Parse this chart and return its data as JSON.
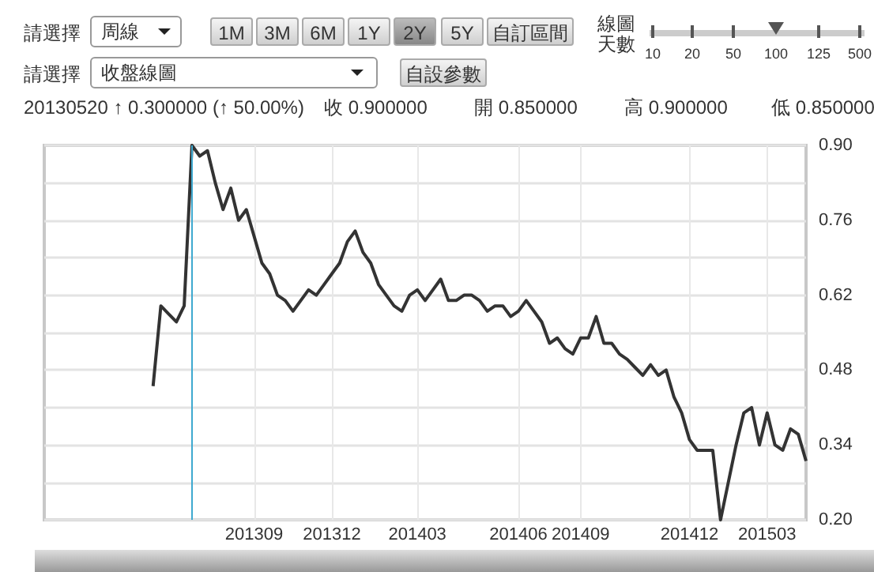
{
  "chart_data": {
    "type": "line",
    "categories": [
      null,
      null,
      null,
      null,
      null,
      null,
      null,
      null,
      null,
      null,
      null,
      null,
      null,
      null,
      null,
      null,
      null,
      null,
      null,
      null,
      null,
      null,
      null,
      null,
      null,
      null,
      null,
      "201309",
      null,
      null,
      null,
      null,
      null,
      null,
      null,
      null,
      null,
      "201312",
      null,
      null,
      null,
      null,
      null,
      null,
      null,
      null,
      null,
      null,
      "201403",
      null,
      null,
      null,
      null,
      null,
      null,
      null,
      null,
      null,
      null,
      null,
      null,
      "201406",
      null,
      null,
      null,
      null,
      null,
      null,
      null,
      "201409",
      null,
      null,
      null,
      null,
      null,
      null,
      null,
      null,
      null,
      null,
      null,
      null,
      null,
      "201412",
      null,
      null,
      null,
      null,
      null,
      null,
      null,
      null,
      null,
      "201503",
      null,
      null,
      null,
      null,
      null
    ],
    "series": [
      {
        "color": "#333333",
        "values": [
          null,
          null,
          null,
          null,
          null,
          null,
          null,
          null,
          null,
          null,
          null,
          null,
          null,
          null,
          0.45,
          0.6,
          0.585,
          0.57,
          0.6,
          0.9,
          0.88,
          0.89,
          0.83,
          0.78,
          0.82,
          0.76,
          0.78,
          0.73,
          0.68,
          0.66,
          0.62,
          0.61,
          0.59,
          0.61,
          0.63,
          0.62,
          0.64,
          0.66,
          0.68,
          0.72,
          0.74,
          0.7,
          0.68,
          0.64,
          0.62,
          0.6,
          0.59,
          0.62,
          0.63,
          0.61,
          0.63,
          0.65,
          0.61,
          0.61,
          0.62,
          0.62,
          0.61,
          0.59,
          0.6,
          0.6,
          0.58,
          0.59,
          0.61,
          0.59,
          0.57,
          0.53,
          0.54,
          0.52,
          0.51,
          0.54,
          0.54,
          0.58,
          0.53,
          0.53,
          0.51,
          0.5,
          0.485,
          0.47,
          0.49,
          0.47,
          0.48,
          0.43,
          0.4,
          0.35,
          0.33,
          0.33,
          0.33,
          0.2,
          0.27,
          0.34,
          0.4,
          0.41,
          0.34,
          0.4,
          0.34,
          0.33,
          0.37,
          0.36,
          0.31
        ]
      }
    ],
    "ylim": [
      0.2,
      0.9
    ],
    "yticks": [
      {
        "value": 0.2,
        "label": "0.20"
      },
      {
        "value": 0.27,
        "label": null
      },
      {
        "value": 0.34,
        "label": "0.34"
      },
      {
        "value": 0.41,
        "label": null
      },
      {
        "value": 0.48,
        "label": "0.48"
      },
      {
        "value": 0.55,
        "label": null
      },
      {
        "value": 0.62,
        "label": "0.62"
      },
      {
        "value": 0.69,
        "label": null
      },
      {
        "value": 0.76,
        "label": "0.76"
      },
      {
        "value": 0.83,
        "label": null
      },
      {
        "value": 0.9,
        "label": "0.90"
      }
    ],
    "grid": true,
    "marker": "none",
    "annotations": [
      "請選擇",
      "周線",
      "1M",
      "3M",
      "6M",
      "1Y",
      "2Y",
      "5Y",
      "自訂區間",
      "線圖天數",
      "10",
      "20",
      "50",
      "100",
      "125",
      "500",
      "請選擇",
      "收盤線圖",
      "自設參數",
      "20130520 ↑ 0.300000 (↑ 50.00%)",
      "收 0.900000",
      "開 0.850000",
      "高 0.900000",
      "低 0.850000"
    ]
  }
}
